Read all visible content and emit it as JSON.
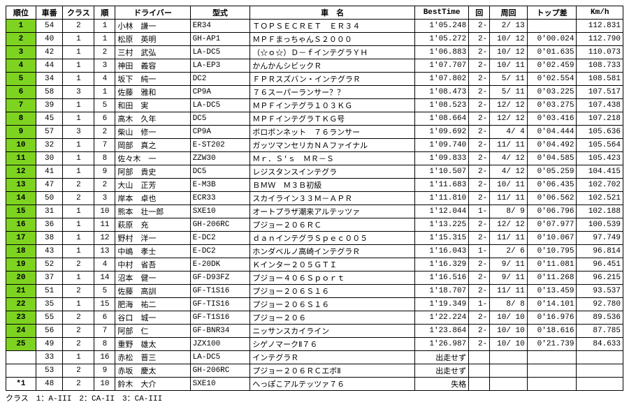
{
  "headers": [
    "順位",
    "車番",
    "クラス",
    "順",
    "ドライバー",
    "型式",
    "車　名",
    "BestTime",
    "回",
    "周回",
    "トップ差",
    "Km/h"
  ],
  "colors": {
    "rank_green": "#7ed321"
  },
  "rows": [
    {
      "rank": "1",
      "rank_green": true,
      "car": "54",
      "cls": "2",
      "ord": "1",
      "driver": "小林　謙一",
      "model": "ER34",
      "name": "ＴＯＰＳＥＣＲＥＴ　ＥＲ３４",
      "best": "1'05.248",
      "rnd": "2-",
      "lap": "2/ 13",
      "gap": "",
      "kmh": "112.831"
    },
    {
      "rank": "2",
      "rank_green": true,
      "car": "40",
      "cls": "1",
      "ord": "1",
      "driver": "松原　英明",
      "model": "GH-AP1",
      "name": "ＭＰＦまっちゃんＳ２０００",
      "best": "1'05.272",
      "rnd": "2-",
      "lap": "10/ 12",
      "gap": "0'00.024",
      "kmh": "112.790"
    },
    {
      "rank": "3",
      "rank_green": true,
      "car": "42",
      "cls": "1",
      "ord": "2",
      "driver": "三村　武弘",
      "model": "LA-DC5",
      "name": "（☆ｏ☆）Ｄ－ｆインテグラＹＨ",
      "best": "1'06.883",
      "rnd": "2-",
      "lap": "10/ 12",
      "gap": "0'01.635",
      "kmh": "110.073"
    },
    {
      "rank": "4",
      "rank_green": true,
      "car": "44",
      "cls": "1",
      "ord": "3",
      "driver": "神田　義容",
      "model": "LA-EP3",
      "name": "かんかんシビックＲ",
      "best": "1'07.707",
      "rnd": "2-",
      "lap": "10/ 11",
      "gap": "0'02.459",
      "kmh": "108.733"
    },
    {
      "rank": "5",
      "rank_green": true,
      "car": "34",
      "cls": "1",
      "ord": "4",
      "driver": "坂下　純一",
      "model": "DC2",
      "name": "ＦＰＲスズバン・インテグラＲ",
      "best": "1'07.802",
      "rnd": "2-",
      "lap": "5/ 11",
      "gap": "0'02.554",
      "kmh": "108.581"
    },
    {
      "rank": "6",
      "rank_green": true,
      "car": "58",
      "cls": "3",
      "ord": "1",
      "driver": "佐藤　雅和",
      "model": "CP9A",
      "name": "７６スーパーランサー？？",
      "best": "1'08.473",
      "rnd": "2-",
      "lap": "5/ 11",
      "gap": "0'03.225",
      "kmh": "107.517"
    },
    {
      "rank": "7",
      "rank_green": true,
      "car": "39",
      "cls": "1",
      "ord": "5",
      "driver": "和田　実",
      "model": "LA-DC5",
      "name": "ＭＰＦインテグラ１０３ＫＧ",
      "best": "1'08.523",
      "rnd": "2-",
      "lap": "12/ 12",
      "gap": "0'03.275",
      "kmh": "107.438"
    },
    {
      "rank": "8",
      "rank_green": true,
      "car": "45",
      "cls": "1",
      "ord": "6",
      "driver": "高木　久年",
      "model": "DC5",
      "name": "ＭＰＦインテグラＴＫＧ号",
      "best": "1'08.664",
      "rnd": "2-",
      "lap": "12/ 12",
      "gap": "0'03.416",
      "kmh": "107.218"
    },
    {
      "rank": "9",
      "rank_green": true,
      "car": "57",
      "cls": "3",
      "ord": "2",
      "driver": "柴山　修一",
      "model": "CP9A",
      "name": "ボロボンネット　７６ランサー",
      "best": "1'09.692",
      "rnd": "2-",
      "lap": "4/ 4",
      "gap": "0'04.444",
      "kmh": "105.636"
    },
    {
      "rank": "10",
      "rank_green": true,
      "car": "32",
      "cls": "1",
      "ord": "7",
      "driver": "岡部　真之",
      "model": "E-ST202",
      "name": "ガッツマンセリカＮＡファイナル",
      "best": "1'09.740",
      "rnd": "2-",
      "lap": "11/ 11",
      "gap": "0'04.492",
      "kmh": "105.564"
    },
    {
      "rank": "11",
      "rank_green": true,
      "car": "30",
      "cls": "1",
      "ord": "8",
      "driver": "佐々木　一",
      "model": "ZZW30",
      "name": "Ｍｒ．Ｓ'ｓ　ＭＲ－Ｓ",
      "best": "1'09.833",
      "rnd": "2-",
      "lap": "4/ 12",
      "gap": "0'04.585",
      "kmh": "105.423"
    },
    {
      "rank": "12",
      "rank_green": true,
      "car": "41",
      "cls": "1",
      "ord": "9",
      "driver": "阿部　貴史",
      "model": "DC5",
      "name": "レジスタンスインテグラ",
      "best": "1'10.507",
      "rnd": "2-",
      "lap": "4/ 12",
      "gap": "0'05.259",
      "kmh": "104.415"
    },
    {
      "rank": "13",
      "rank_green": true,
      "car": "47",
      "cls": "2",
      "ord": "2",
      "driver": "大山　正芳",
      "model": "E-M3B",
      "name": "ＢＭＷ　Ｍ３Ｂ初級",
      "best": "1'11.683",
      "rnd": "2-",
      "lap": "10/ 11",
      "gap": "0'06.435",
      "kmh": "102.702"
    },
    {
      "rank": "14",
      "rank_green": true,
      "car": "50",
      "cls": "2",
      "ord": "3",
      "driver": "岸本　卓也",
      "model": "ECR33",
      "name": "スカイライン３３Ｍ－ＡＰＲ",
      "best": "1'11.810",
      "rnd": "2-",
      "lap": "11/ 11",
      "gap": "0'06.562",
      "kmh": "102.521"
    },
    {
      "rank": "15",
      "rank_green": true,
      "car": "31",
      "cls": "1",
      "ord": "10",
      "driver": "熊本　壮一郎",
      "model": "SXE10",
      "name": "オートプラザ潮来アルテッツァ",
      "best": "1'12.044",
      "rnd": "1-",
      "lap": "8/ 9",
      "gap": "0'06.796",
      "kmh": "102.188"
    },
    {
      "rank": "16",
      "rank_green": true,
      "car": "36",
      "cls": "1",
      "ord": "11",
      "driver": "萩原　充",
      "model": "GH-206RC",
      "name": "プジョー２０６ＲＣ",
      "best": "1'13.225",
      "rnd": "2-",
      "lap": "12/ 12",
      "gap": "0'07.977",
      "kmh": "100.539"
    },
    {
      "rank": "17",
      "rank_green": true,
      "car": "38",
      "cls": "1",
      "ord": "12",
      "driver": "野村　洋一",
      "model": "E-DC2",
      "name": "ｄａｎインテグラＳｐｅｃ００５",
      "best": "1'15.315",
      "rnd": "2-",
      "lap": "11/ 11",
      "gap": "0'10.067",
      "kmh": "97.749"
    },
    {
      "rank": "18",
      "rank_green": true,
      "car": "43",
      "cls": "1",
      "ord": "13",
      "driver": "中嶋　孝士",
      "model": "E-DC2",
      "name": "ホンダベルノ高崎インテグラＲ",
      "best": "1'16.043",
      "rnd": "1-",
      "lap": "2/ 6",
      "gap": "0'10.795",
      "kmh": "96.814"
    },
    {
      "rank": "19",
      "rank_green": true,
      "car": "52",
      "cls": "2",
      "ord": "4",
      "driver": "中村　省吾",
      "model": "E-20DK",
      "name": "Ｋインター２０５ＧＴＩ",
      "best": "1'16.329",
      "rnd": "2-",
      "lap": "9/ 11",
      "gap": "0'11.081",
      "kmh": "96.451"
    },
    {
      "rank": "20",
      "rank_green": true,
      "car": "37",
      "cls": "1",
      "ord": "14",
      "driver": "沼本　健一",
      "model": "GF-D93FZ",
      "name": "プジョー４０６Ｓｐｏｒｔ",
      "best": "1'16.516",
      "rnd": "2-",
      "lap": "9/ 11",
      "gap": "0'11.268",
      "kmh": "96.215"
    },
    {
      "rank": "21",
      "rank_green": true,
      "car": "51",
      "cls": "2",
      "ord": "5",
      "driver": "佐藤　高訓",
      "model": "GF-T1S16",
      "name": "プジョー２０６Ｓ１６",
      "best": "1'18.707",
      "rnd": "2-",
      "lap": "11/ 11",
      "gap": "0'13.459",
      "kmh": "93.537"
    },
    {
      "rank": "22",
      "rank_green": true,
      "car": "35",
      "cls": "1",
      "ord": "15",
      "driver": "肥海　祐二",
      "model": "GF-TIS16",
      "name": "プジョー２０６Ｓ１６",
      "best": "1'19.349",
      "rnd": "1-",
      "lap": "8/ 8",
      "gap": "0'14.101",
      "kmh": "92.780"
    },
    {
      "rank": "23",
      "rank_green": true,
      "car": "55",
      "cls": "2",
      "ord": "6",
      "driver": "谷口　城一",
      "model": "GF-T1S16",
      "name": "プジョー２０６",
      "best": "1'22.224",
      "rnd": "2-",
      "lap": "10/ 10",
      "gap": "0'16.976",
      "kmh": "89.536"
    },
    {
      "rank": "24",
      "rank_green": true,
      "car": "56",
      "cls": "2",
      "ord": "7",
      "driver": "阿部　仁",
      "model": "GF-BNR34",
      "name": "ニッサンスカイライン",
      "best": "1'23.864",
      "rnd": "2-",
      "lap": "10/ 10",
      "gap": "0'18.616",
      "kmh": "87.785"
    },
    {
      "rank": "25",
      "rank_green": true,
      "car": "49",
      "cls": "2",
      "ord": "8",
      "driver": "重野　雄太",
      "model": "JZX100",
      "name": "シゲノマークⅡ７６",
      "best": "1'26.987",
      "rnd": "2-",
      "lap": "10/ 10",
      "gap": "0'21.739",
      "kmh": "84.633"
    },
    {
      "rank": "",
      "rank_green": false,
      "car": "33",
      "cls": "1",
      "ord": "16",
      "driver": "赤松　晋三",
      "model": "LA-DC5",
      "name": "インテグラＲ",
      "best": "出走せず",
      "rnd": "",
      "lap": "",
      "gap": "",
      "kmh": ""
    },
    {
      "rank": "",
      "rank_green": false,
      "car": "53",
      "cls": "2",
      "ord": "9",
      "driver": "赤坂　慶太",
      "model": "GH-206RC",
      "name": "プジョー２０６ＲＣエボⅡ",
      "best": "出走せず",
      "rnd": "",
      "lap": "",
      "gap": "",
      "kmh": ""
    },
    {
      "rank": "*1",
      "rank_green": false,
      "car": "48",
      "cls": "2",
      "ord": "10",
      "driver": "鈴木　大介",
      "model": "SXE10",
      "name": "へっぽこアルテッツァ７６",
      "best": "失格",
      "rnd": "",
      "lap": "",
      "gap": "",
      "kmh": ""
    }
  ],
  "footer_note": "クラス　1：A-III　2：CA-II　3：CA-III"
}
